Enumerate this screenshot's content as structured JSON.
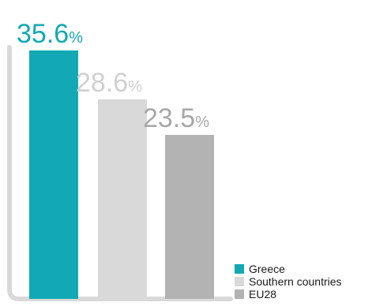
{
  "chart_data": {
    "type": "bar",
    "categories": [
      "Greece",
      "Southern countries",
      "EU28"
    ],
    "values": [
      35.6,
      28.6,
      23.5
    ],
    "value_suffix": "%",
    "data_labels": [
      "35.6",
      "28.6",
      "23.5"
    ],
    "colors": [
      "#12a9b5",
      "#d9d9d9",
      "#b3b3b3"
    ],
    "label_colors": [
      "#12a9b5",
      "#d0d0d0",
      "#a8a8a8"
    ],
    "axis_color": "#d9d9d9",
    "ylim": [
      0,
      36.5
    ],
    "grid": false,
    "legend": {
      "position": "bottom-right",
      "entries": [
        "Greece",
        "Southern countries",
        "EU28"
      ]
    }
  }
}
